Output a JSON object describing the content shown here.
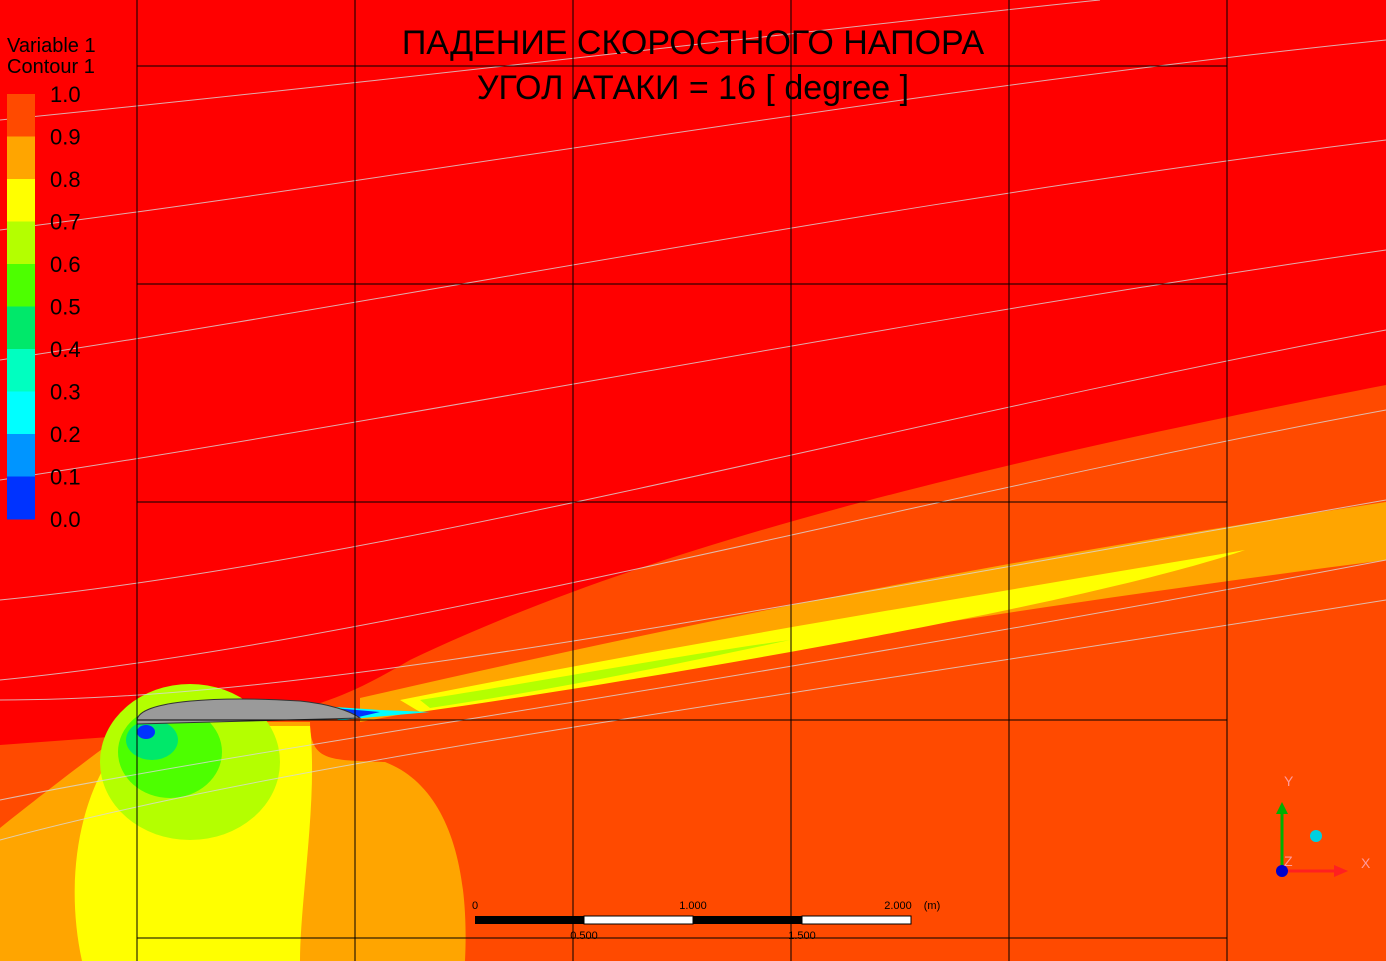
{
  "legend": {
    "variable": "Variable 1",
    "contour": "Contour 1",
    "levels": [
      "1.0",
      "0.9",
      "0.8",
      "0.7",
      "0.6",
      "0.5",
      "0.4",
      "0.3",
      "0.2",
      "0.1",
      "0.0"
    ],
    "colors": [
      "#ff4a00",
      "#ffa500",
      "#ffff00",
      "#b4ff00",
      "#4dff00",
      "#00e86a",
      "#00ffc0",
      "#00ffff",
      "#0095ff",
      "#0033ff"
    ]
  },
  "title": {
    "line1": "ПАДЕНИЕ СКОРОСТНОГО НАПОРА",
    "line2": "УГОЛ АТАКИ = 16 [ degree ]"
  },
  "scale_bar": {
    "top_labels": [
      "0",
      "1.000",
      "2.000",
      "(m)"
    ],
    "bottom_labels": [
      "0.500",
      "1.500"
    ]
  },
  "triad": {
    "x": "X",
    "y": "Y",
    "z": "Z"
  }
}
